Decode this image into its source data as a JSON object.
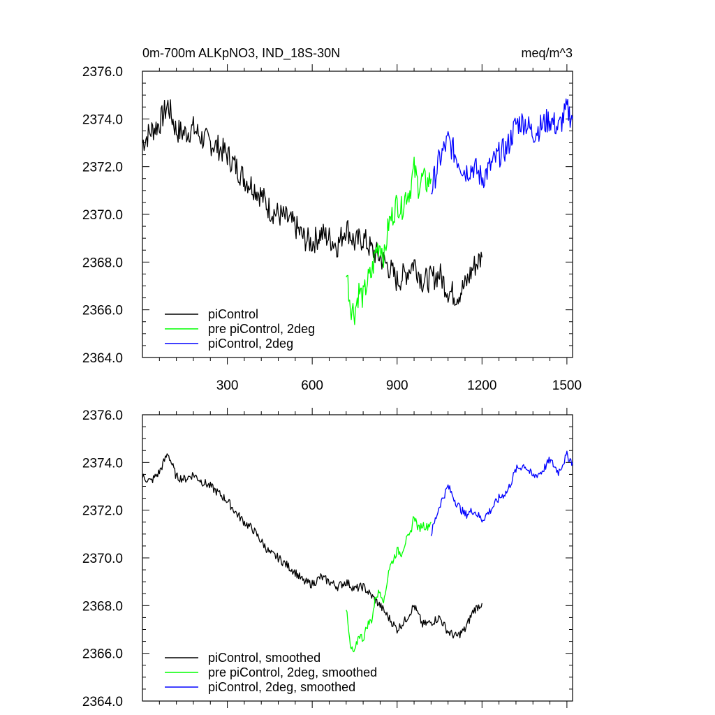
{
  "chart_data": [
    {
      "type": "line",
      "title": "0m-700m ALKpNO3, IND_18S-30N",
      "units": "meq/m^3",
      "xlim": [
        0,
        1520
      ],
      "ylim": [
        2364.0,
        2376.0
      ],
      "x_ticks": [
        "300",
        "600",
        "900",
        "1200",
        "1500"
      ],
      "y_ticks": [
        "2364.0",
        "2366.0",
        "2368.0",
        "2370.0",
        "2372.0",
        "2374.0",
        "2376.0"
      ],
      "legend_position": "bottom-left",
      "series": [
        {
          "name": "piControl",
          "color": "#000000",
          "x": [
            0,
            30,
            60,
            90,
            120,
            150,
            180,
            210,
            240,
            270,
            300,
            330,
            360,
            390,
            420,
            450,
            480,
            510,
            540,
            570,
            600,
            630,
            660,
            690,
            720,
            750,
            780,
            810,
            840,
            870,
            900,
            930,
            960,
            990,
            1020,
            1050,
            1080,
            1110,
            1140,
            1170,
            1200
          ],
          "y": [
            2373.0,
            2373.5,
            2373.8,
            2374.6,
            2373.5,
            2373.4,
            2373.6,
            2373.2,
            2373.0,
            2372.8,
            2372.5,
            2372.0,
            2371.5,
            2371.2,
            2370.8,
            2370.2,
            2370.0,
            2369.8,
            2369.5,
            2369.0,
            2368.8,
            2369.2,
            2369.0,
            2368.7,
            2369.5,
            2368.8,
            2369.0,
            2368.5,
            2368.2,
            2367.8,
            2367.2,
            2367.5,
            2368.0,
            2367.2,
            2367.3,
            2367.5,
            2366.8,
            2366.6,
            2367.0,
            2367.8,
            2368.2
          ]
        },
        {
          "name": "pre piControl, 2deg",
          "color": "#00ff00",
          "x": [
            720,
            735,
            750,
            765,
            780,
            795,
            810,
            825,
            840,
            855,
            870,
            885,
            900,
            915,
            930,
            945,
            960,
            975,
            990,
            1005,
            1020
          ],
          "y": [
            2367.8,
            2366.2,
            2365.9,
            2366.8,
            2366.5,
            2367.2,
            2367.5,
            2368.5,
            2368.8,
            2368.2,
            2369.6,
            2370.0,
            2370.5,
            2370.2,
            2370.8,
            2371.0,
            2371.9,
            2371.2,
            2371.5,
            2371.3,
            2371.5
          ]
        },
        {
          "name": "piControl, 2deg",
          "color": "#0000ff",
          "x": [
            1020,
            1050,
            1080,
            1110,
            1140,
            1170,
            1200,
            1230,
            1260,
            1290,
            1320,
            1350,
            1380,
            1410,
            1440,
            1470,
            1500,
            1520
          ],
          "y": [
            2371.0,
            2372.3,
            2373.1,
            2372.4,
            2371.8,
            2372.0,
            2371.5,
            2372.0,
            2372.5,
            2372.8,
            2373.8,
            2373.9,
            2373.4,
            2373.7,
            2374.0,
            2373.6,
            2374.4,
            2374.0
          ]
        }
      ]
    },
    {
      "type": "line",
      "xlim": [
        0,
        1520
      ],
      "ylim": [
        2364.0,
        2376.0
      ],
      "y_ticks": [
        "2364.0",
        "2366.0",
        "2368.0",
        "2370.0",
        "2372.0",
        "2374.0",
        "2376.0"
      ],
      "legend_position": "bottom-left",
      "series": [
        {
          "name": "piControl, smoothed",
          "color": "#000000",
          "x": [
            0,
            30,
            60,
            90,
            120,
            150,
            180,
            210,
            240,
            270,
            300,
            330,
            360,
            390,
            420,
            450,
            480,
            510,
            540,
            570,
            600,
            630,
            660,
            690,
            720,
            750,
            780,
            810,
            840,
            870,
            900,
            930,
            960,
            990,
            1020,
            1050,
            1080,
            1110,
            1140,
            1170,
            1200
          ],
          "y": [
            2373.4,
            2373.2,
            2373.6,
            2374.4,
            2373.4,
            2373.3,
            2373.5,
            2373.2,
            2373.0,
            2372.7,
            2372.4,
            2371.9,
            2371.5,
            2371.2,
            2370.7,
            2370.2,
            2370.0,
            2369.7,
            2369.4,
            2369.0,
            2368.9,
            2369.2,
            2369.0,
            2368.8,
            2369.0,
            2368.7,
            2368.8,
            2368.4,
            2368.0,
            2367.5,
            2367.0,
            2367.4,
            2368.0,
            2367.2,
            2367.3,
            2367.5,
            2366.9,
            2366.7,
            2367.0,
            2367.8,
            2368.1
          ]
        },
        {
          "name": "pre piControl, 2deg, smoothed",
          "color": "#00ff00",
          "x": [
            720,
            735,
            750,
            765,
            780,
            795,
            810,
            825,
            840,
            855,
            870,
            885,
            900,
            915,
            930,
            945,
            960,
            975,
            990,
            1005,
            1020
          ],
          "y": [
            2367.9,
            2366.2,
            2366.0,
            2366.8,
            2366.6,
            2367.2,
            2367.4,
            2368.4,
            2368.6,
            2368.2,
            2369.5,
            2369.9,
            2370.3,
            2370.2,
            2370.7,
            2370.9,
            2371.8,
            2371.2,
            2371.4,
            2371.3,
            2371.5
          ]
        },
        {
          "name": "piControl, 2deg, smoothed",
          "color": "#0000ff",
          "x": [
            1020,
            1050,
            1080,
            1110,
            1140,
            1170,
            1200,
            1230,
            1260,
            1290,
            1320,
            1350,
            1380,
            1410,
            1440,
            1470,
            1500,
            1520
          ],
          "y": [
            2371.0,
            2372.2,
            2373.0,
            2372.3,
            2371.8,
            2372.0,
            2371.6,
            2372.0,
            2372.5,
            2372.8,
            2373.7,
            2373.9,
            2373.4,
            2373.6,
            2374.1,
            2373.6,
            2374.3,
            2374.0
          ]
        }
      ]
    }
  ]
}
